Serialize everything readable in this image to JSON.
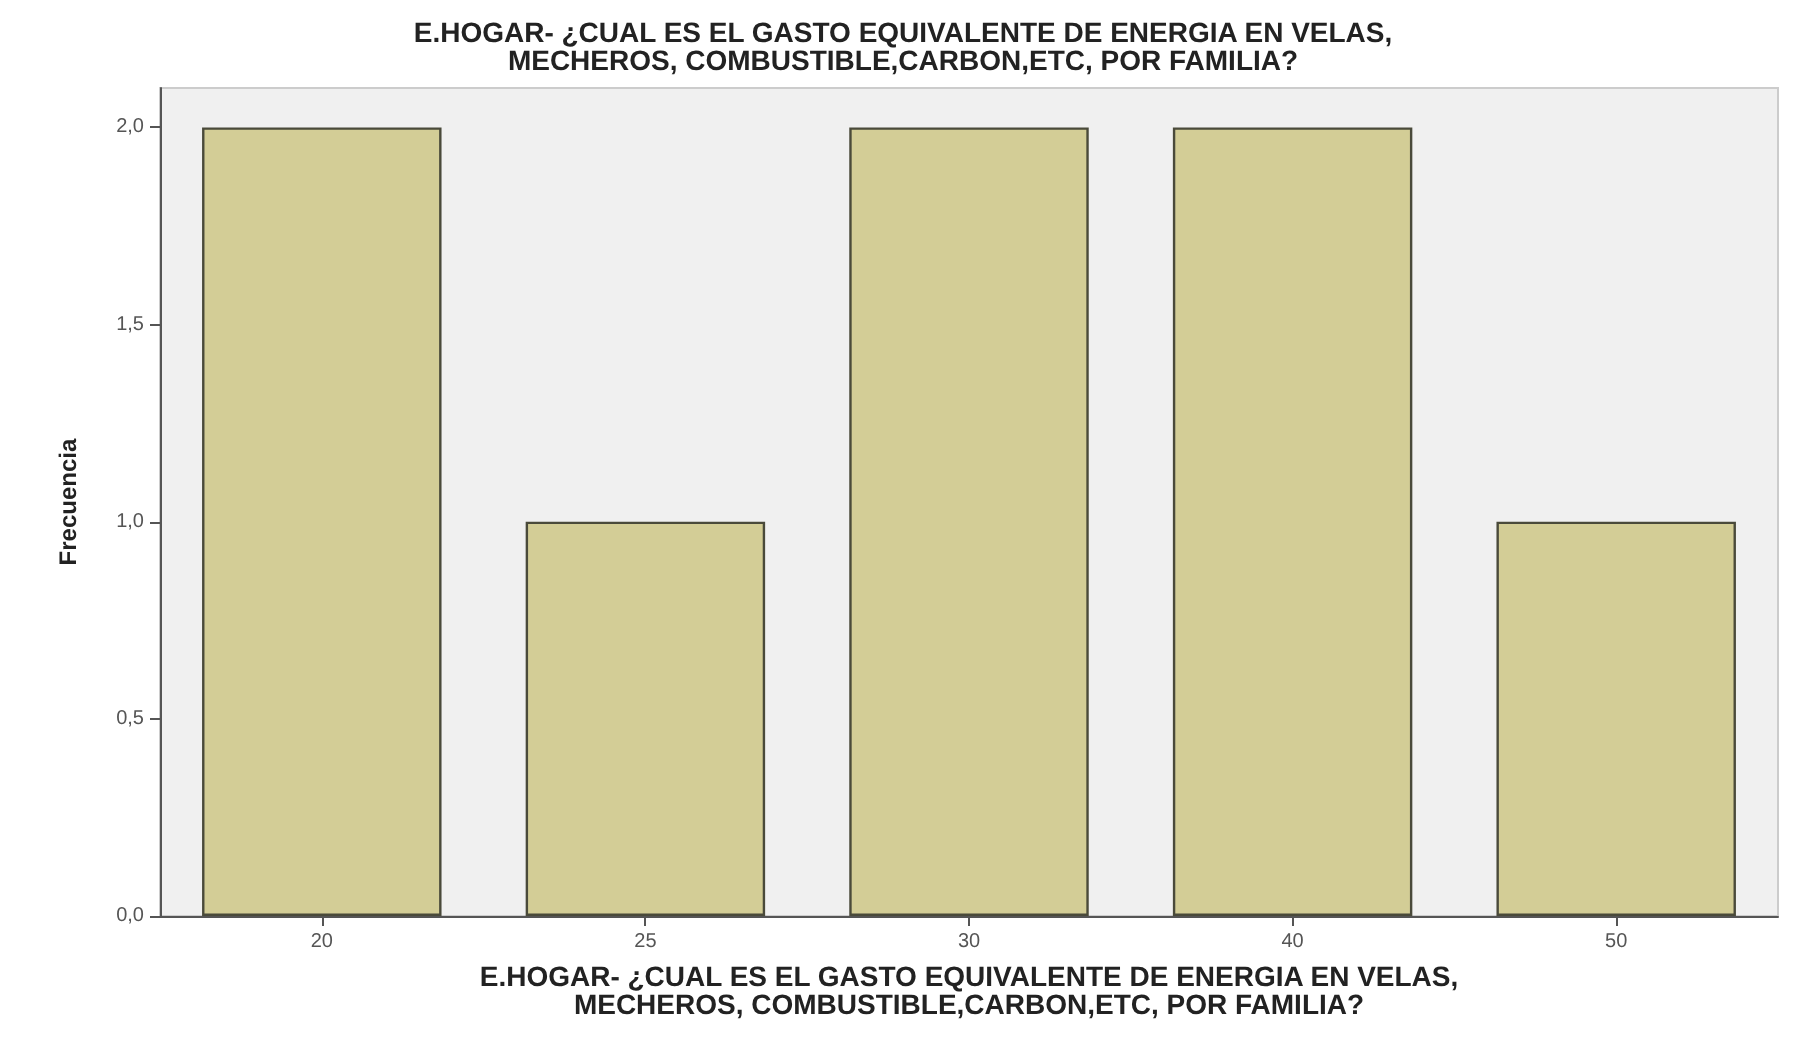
{
  "chart_data": {
    "type": "bar",
    "title": "E.HOGAR- ¿CUAL ES EL GASTO EQUIVALENTE DE ENERGIA EN VELAS,\nMECHEROS, COMBUSTIBLE,CARBON,ETC, POR FAMILIA?",
    "xlabel": "E.HOGAR- ¿CUAL ES EL GASTO EQUIVALENTE DE ENERGIA EN VELAS,\nMECHEROS, COMBUSTIBLE,CARBON,ETC, POR FAMILIA?",
    "ylabel": "Frecuencia",
    "categories": [
      "20",
      "25",
      "30",
      "40",
      "50"
    ],
    "values": [
      2,
      1,
      2,
      2,
      1
    ],
    "color": "#d3cd96",
    "ylim": [
      0,
      2.1
    ],
    "yticks": [
      {
        "value": 0,
        "label": "0,0"
      },
      {
        "value": 0.5,
        "label": "0,5"
      },
      {
        "value": 1,
        "label": "1,0"
      },
      {
        "value": 1.5,
        "label": "1,5"
      },
      {
        "value": 2,
        "label": "2,0"
      }
    ],
    "grid": false
  }
}
